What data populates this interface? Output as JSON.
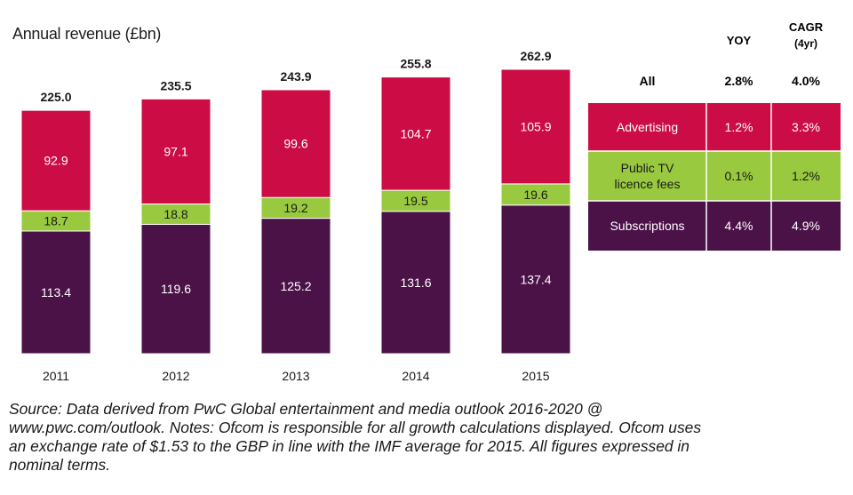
{
  "chart_data": {
    "type": "bar",
    "stacked": true,
    "title": "",
    "ylabel": "Annual revenue (£bn)",
    "xlabel": "",
    "categories": [
      "2011",
      "2012",
      "2013",
      "2014",
      "2015"
    ],
    "series": [
      {
        "name": "Subscriptions",
        "color": "#4b1248",
        "values": [
          113.4,
          119.6,
          125.2,
          131.6,
          137.4
        ],
        "labels": [
          "113.4",
          "119.6",
          "125.2",
          "131.6",
          "137.4"
        ]
      },
      {
        "name": "Public TV licence fees",
        "color": "#99c93f",
        "values": [
          18.7,
          18.8,
          19.2,
          19.5,
          19.6
        ],
        "labels": [
          "18.7",
          "18.8",
          "19.2",
          "19.5",
          "19.6"
        ]
      },
      {
        "name": "Advertising",
        "color": "#cc0d45",
        "values": [
          92.9,
          97.1,
          99.6,
          104.7,
          105.9
        ],
        "labels": [
          "92.9",
          "97.1",
          "99.6",
          "104.7",
          "105.9"
        ]
      }
    ],
    "totals": [
      225.0,
      235.5,
      243.9,
      255.8,
      262.9
    ],
    "total_labels": [
      "225.0",
      "235.5",
      "243.9",
      "255.8",
      "262.9"
    ],
    "ylim": [
      0,
      262.9
    ]
  },
  "growth_table": {
    "col_headers": [
      "YOY",
      "CAGR",
      "(4yr)"
    ],
    "all_row": {
      "label": "All",
      "yoy": "2.8%",
      "cagr": "4.0%"
    },
    "rows": [
      {
        "label": [
          "Advertising"
        ],
        "yoy": "1.2%",
        "cagr": "3.3%",
        "color": "#cc0d45"
      },
      {
        "label": [
          "Public TV",
          "licence fees"
        ],
        "yoy": "0.1%",
        "cagr": "1.2%",
        "color": "#99c93f"
      },
      {
        "label": [
          "Subscriptions"
        ],
        "yoy": "4.4%",
        "cagr": "4.9%",
        "color": "#4b1248"
      }
    ]
  },
  "footnote": [
    "Source: Data derived from PwC Global entertainment and media outlook 2016-2020 @",
    "www.pwc.com/outlook. Notes: Ofcom is responsible for all growth calculations displayed. Ofcom uses",
    "an exchange rate of $1.53 to the GBP in line with the IMF average for 2015. All figures expressed in",
    "nominal terms."
  ]
}
